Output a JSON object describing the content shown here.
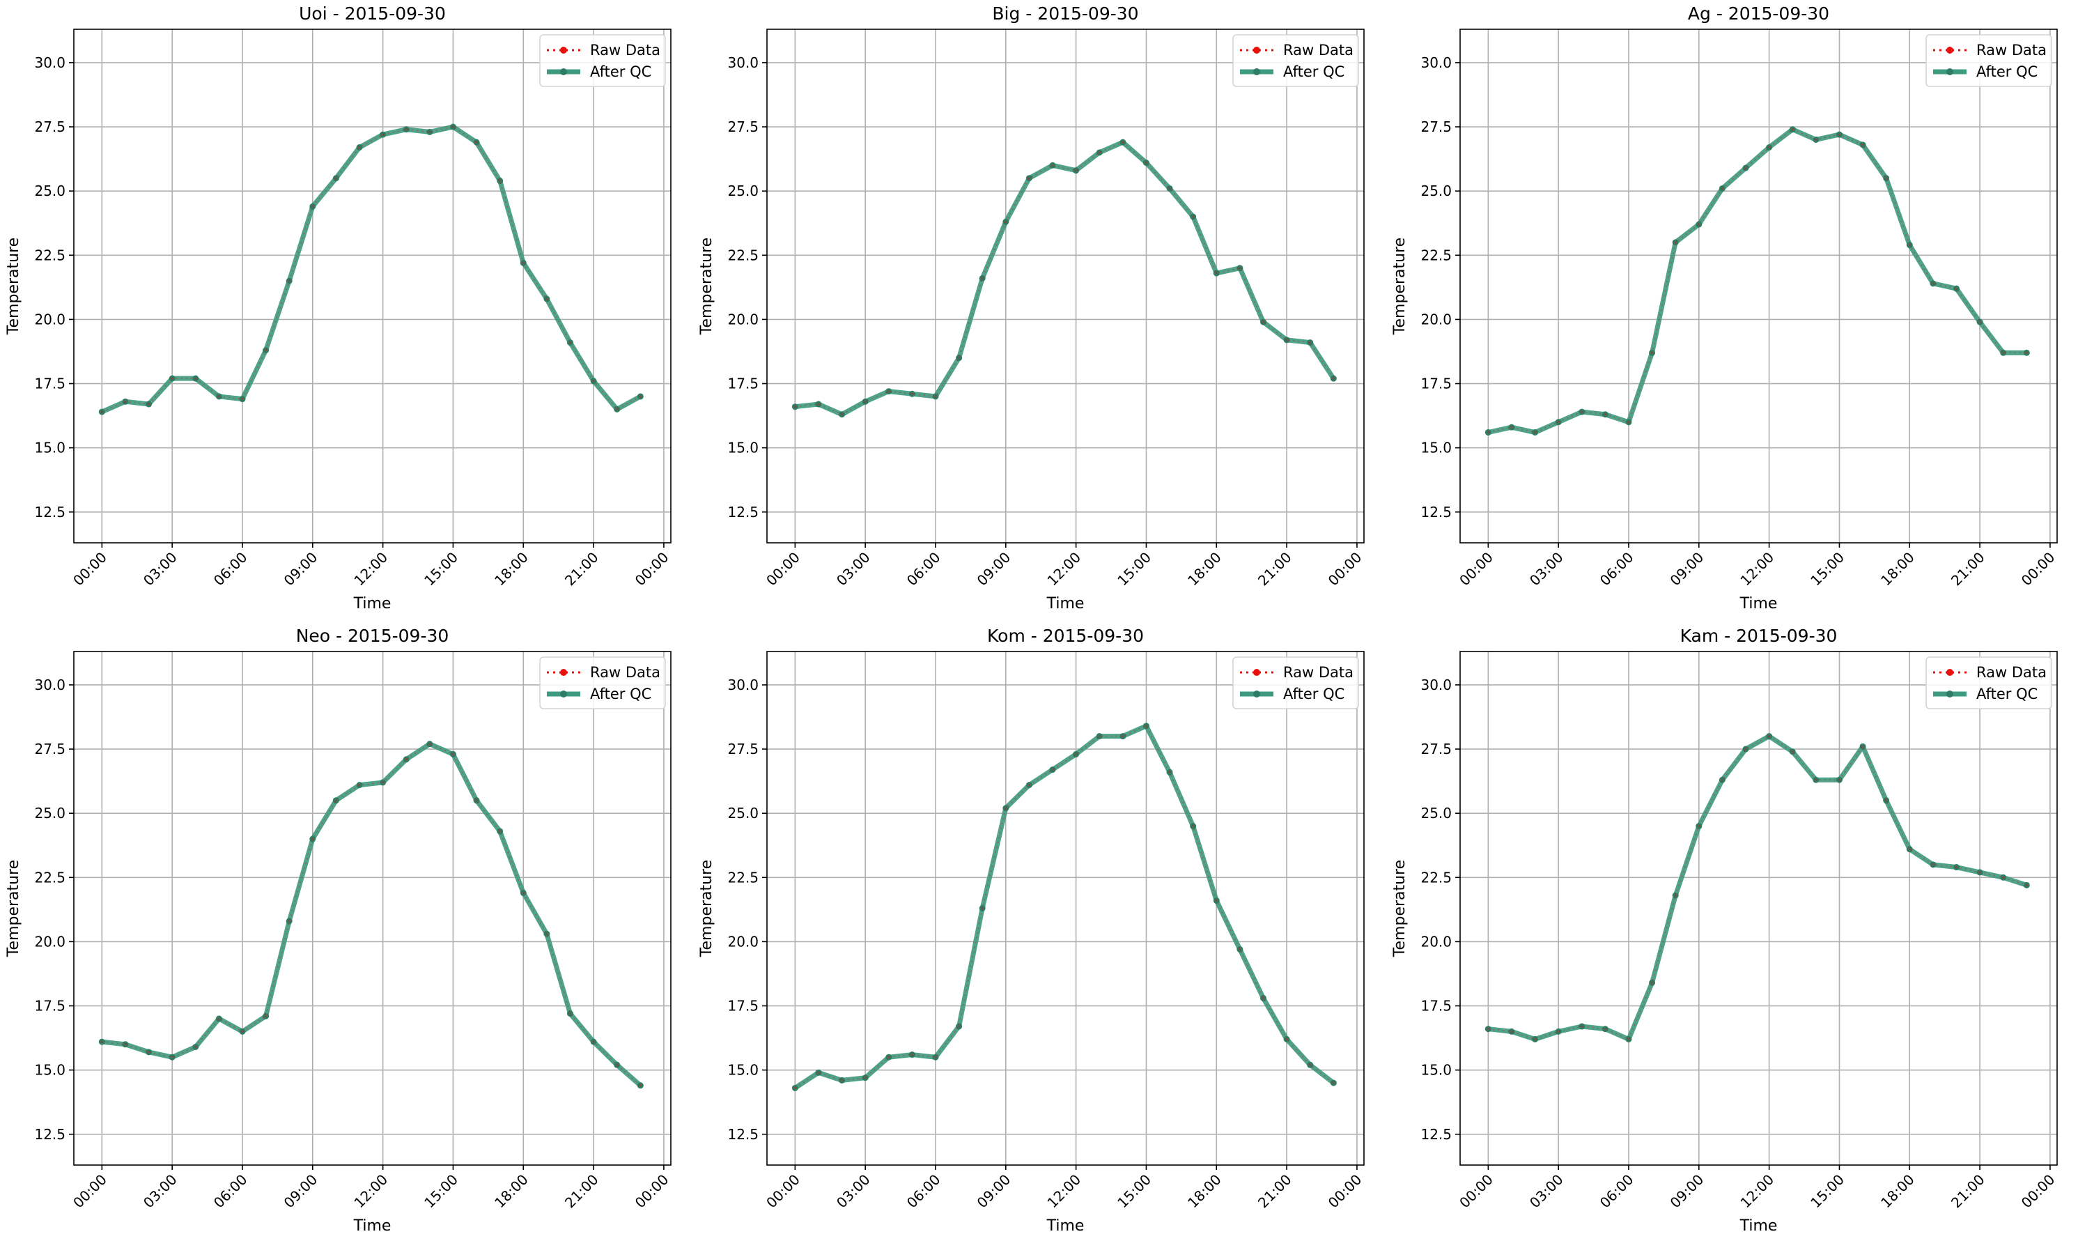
{
  "figure": {
    "colors": {
      "raw": "#e8100c",
      "qc": "#3f9b80",
      "qc_marker": "#2e7d64",
      "grid": "#b0b0b0",
      "frame": "#000000"
    },
    "legend": {
      "position": "upper-right",
      "entries": [
        "Raw Data",
        "After QC"
      ]
    }
  },
  "chart_data": [
    {
      "type": "line",
      "title": "Uoi - 2015-09-30",
      "xlabel": "Time",
      "ylabel": "Temperature",
      "xlim": [
        -1.2,
        24.3
      ],
      "ylim": [
        11.3,
        31.3
      ],
      "x_ticks": [
        0,
        3,
        6,
        9,
        12,
        15,
        18,
        21,
        24
      ],
      "x_tick_labels": [
        "00:00",
        "03:00",
        "06:00",
        "09:00",
        "12:00",
        "15:00",
        "18:00",
        "21:00",
        "00:00"
      ],
      "y_ticks": [
        12.5,
        15.0,
        17.5,
        20.0,
        22.5,
        25.0,
        27.5,
        30.0
      ],
      "y_tick_labels": [
        "12.5",
        "15.0",
        "17.5",
        "20.0",
        "22.5",
        "25.0",
        "27.5",
        "30.0"
      ],
      "grid": true,
      "legend": "upper-right",
      "x": [
        0,
        1,
        2,
        3,
        4,
        5,
        6,
        7,
        8,
        9,
        10,
        11,
        12,
        13,
        14,
        15,
        16,
        17,
        18,
        19,
        20,
        21,
        22,
        23
      ],
      "series": [
        {
          "name": "Raw Data",
          "values": [
            16.4,
            16.8,
            16.7,
            17.7,
            17.7,
            17.0,
            16.9,
            18.8,
            21.5,
            24.4,
            25.5,
            26.7,
            27.2,
            27.4,
            27.3,
            27.5,
            26.9,
            25.4,
            22.2,
            20.8,
            19.1,
            17.6,
            16.5,
            17.0
          ]
        },
        {
          "name": "After QC",
          "values": [
            16.4,
            16.8,
            16.7,
            17.7,
            17.7,
            17.0,
            16.9,
            18.8,
            21.5,
            24.4,
            25.5,
            26.7,
            27.2,
            27.4,
            27.3,
            27.5,
            26.9,
            25.4,
            22.2,
            20.8,
            19.1,
            17.6,
            16.5,
            17.0
          ]
        }
      ]
    },
    {
      "type": "line",
      "title": "Big - 2015-09-30",
      "xlabel": "Time",
      "ylabel": "Temperature",
      "xlim": [
        -1.2,
        24.3
      ],
      "ylim": [
        11.3,
        31.3
      ],
      "x_ticks": [
        0,
        3,
        6,
        9,
        12,
        15,
        18,
        21,
        24
      ],
      "x_tick_labels": [
        "00:00",
        "03:00",
        "06:00",
        "09:00",
        "12:00",
        "15:00",
        "18:00",
        "21:00",
        "00:00"
      ],
      "y_ticks": [
        12.5,
        15.0,
        17.5,
        20.0,
        22.5,
        25.0,
        27.5,
        30.0
      ],
      "y_tick_labels": [
        "12.5",
        "15.0",
        "17.5",
        "20.0",
        "22.5",
        "25.0",
        "27.5",
        "30.0"
      ],
      "grid": true,
      "legend": "upper-right",
      "x": [
        0,
        1,
        2,
        3,
        4,
        5,
        6,
        7,
        8,
        9,
        10,
        11,
        12,
        13,
        14,
        15,
        16,
        17,
        18,
        19,
        20,
        21,
        22,
        23
      ],
      "series": [
        {
          "name": "Raw Data",
          "values": [
            16.6,
            16.7,
            16.3,
            16.8,
            17.2,
            17.1,
            17.0,
            18.5,
            21.6,
            23.8,
            25.5,
            26.0,
            25.8,
            26.5,
            26.9,
            26.1,
            25.1,
            24.0,
            21.8,
            22.0,
            19.9,
            19.2,
            19.1,
            17.7
          ]
        },
        {
          "name": "After QC",
          "values": [
            16.6,
            16.7,
            16.3,
            16.8,
            17.2,
            17.1,
            17.0,
            18.5,
            21.6,
            23.8,
            25.5,
            26.0,
            25.8,
            26.5,
            26.9,
            26.1,
            25.1,
            24.0,
            21.8,
            22.0,
            19.9,
            19.2,
            19.1,
            17.7
          ]
        }
      ]
    },
    {
      "type": "line",
      "title": "Ag - 2015-09-30",
      "xlabel": "Time",
      "ylabel": "Temperature",
      "xlim": [
        -1.2,
        24.3
      ],
      "ylim": [
        11.3,
        31.3
      ],
      "x_ticks": [
        0,
        3,
        6,
        9,
        12,
        15,
        18,
        21,
        24
      ],
      "x_tick_labels": [
        "00:00",
        "03:00",
        "06:00",
        "09:00",
        "12:00",
        "15:00",
        "18:00",
        "21:00",
        "00:00"
      ],
      "y_ticks": [
        12.5,
        15.0,
        17.5,
        20.0,
        22.5,
        25.0,
        27.5,
        30.0
      ],
      "y_tick_labels": [
        "12.5",
        "15.0",
        "17.5",
        "20.0",
        "22.5",
        "25.0",
        "27.5",
        "30.0"
      ],
      "grid": true,
      "legend": "upper-right",
      "x": [
        0,
        1,
        2,
        3,
        4,
        5,
        6,
        7,
        8,
        9,
        10,
        11,
        12,
        13,
        14,
        15,
        16,
        17,
        18,
        19,
        20,
        21,
        22,
        23
      ],
      "series": [
        {
          "name": "Raw Data",
          "values": [
            15.6,
            15.8,
            15.6,
            16.0,
            16.4,
            16.3,
            16.0,
            18.7,
            23.0,
            23.7,
            25.1,
            25.9,
            26.7,
            27.4,
            27.0,
            27.2,
            26.8,
            25.5,
            22.9,
            21.4,
            21.2,
            19.9,
            18.7,
            18.7
          ]
        },
        {
          "name": "After QC",
          "values": [
            15.6,
            15.8,
            15.6,
            16.0,
            16.4,
            16.3,
            16.0,
            18.7,
            23.0,
            23.7,
            25.1,
            25.9,
            26.7,
            27.4,
            27.0,
            27.2,
            26.8,
            25.5,
            22.9,
            21.4,
            21.2,
            19.9,
            18.7,
            18.7
          ]
        }
      ]
    },
    {
      "type": "line",
      "title": "Neo - 2015-09-30",
      "xlabel": "Time",
      "ylabel": "Temperature",
      "xlim": [
        -1.2,
        24.3
      ],
      "ylim": [
        11.3,
        31.3
      ],
      "x_ticks": [
        0,
        3,
        6,
        9,
        12,
        15,
        18,
        21,
        24
      ],
      "x_tick_labels": [
        "00:00",
        "03:00",
        "06:00",
        "09:00",
        "12:00",
        "15:00",
        "18:00",
        "21:00",
        "00:00"
      ],
      "y_ticks": [
        12.5,
        15.0,
        17.5,
        20.0,
        22.5,
        25.0,
        27.5,
        30.0
      ],
      "y_tick_labels": [
        "12.5",
        "15.0",
        "17.5",
        "20.0",
        "22.5",
        "25.0",
        "27.5",
        "30.0"
      ],
      "grid": true,
      "legend": "upper-right",
      "x": [
        0,
        1,
        2,
        3,
        4,
        5,
        6,
        7,
        8,
        9,
        10,
        11,
        12,
        13,
        14,
        15,
        16,
        17,
        18,
        19,
        20,
        21,
        22,
        23
      ],
      "series": [
        {
          "name": "Raw Data",
          "values": [
            16.1,
            16.0,
            15.7,
            15.5,
            15.9,
            17.0,
            16.5,
            17.1,
            20.8,
            24.0,
            25.5,
            26.1,
            26.2,
            27.1,
            27.7,
            27.3,
            25.5,
            24.3,
            21.9,
            20.3,
            17.2,
            16.1,
            15.2,
            14.4
          ]
        },
        {
          "name": "After QC",
          "values": [
            16.1,
            16.0,
            15.7,
            15.5,
            15.9,
            17.0,
            16.5,
            17.1,
            20.8,
            24.0,
            25.5,
            26.1,
            26.2,
            27.1,
            27.7,
            27.3,
            25.5,
            24.3,
            21.9,
            20.3,
            17.2,
            16.1,
            15.2,
            14.4
          ]
        }
      ]
    },
    {
      "type": "line",
      "title": "Kom - 2015-09-30",
      "xlabel": "Time",
      "ylabel": "Temperature",
      "xlim": [
        -1.2,
        24.3
      ],
      "ylim": [
        11.3,
        31.3
      ],
      "x_ticks": [
        0,
        3,
        6,
        9,
        12,
        15,
        18,
        21,
        24
      ],
      "x_tick_labels": [
        "00:00",
        "03:00",
        "06:00",
        "09:00",
        "12:00",
        "15:00",
        "18:00",
        "21:00",
        "00:00"
      ],
      "y_ticks": [
        12.5,
        15.0,
        17.5,
        20.0,
        22.5,
        25.0,
        27.5,
        30.0
      ],
      "y_tick_labels": [
        "12.5",
        "15.0",
        "17.5",
        "20.0",
        "22.5",
        "25.0",
        "27.5",
        "30.0"
      ],
      "grid": true,
      "legend": "upper-right",
      "x": [
        0,
        1,
        2,
        3,
        4,
        5,
        6,
        7,
        8,
        9,
        10,
        11,
        12,
        13,
        14,
        15,
        16,
        17,
        18,
        19,
        20,
        21,
        22,
        23
      ],
      "series": [
        {
          "name": "Raw Data",
          "values": [
            14.3,
            14.9,
            14.6,
            14.7,
            15.5,
            15.6,
            15.5,
            16.7,
            21.3,
            25.2,
            26.1,
            26.7,
            27.3,
            28.0,
            28.0,
            28.4,
            26.6,
            24.5,
            21.6,
            19.7,
            17.8,
            16.2,
            15.2,
            14.5
          ]
        },
        {
          "name": "After QC",
          "values": [
            14.3,
            14.9,
            14.6,
            14.7,
            15.5,
            15.6,
            15.5,
            16.7,
            21.3,
            25.2,
            26.1,
            26.7,
            27.3,
            28.0,
            28.0,
            28.4,
            26.6,
            24.5,
            21.6,
            19.7,
            17.8,
            16.2,
            15.2,
            14.5
          ]
        }
      ]
    },
    {
      "type": "line",
      "title": "Kam - 2015-09-30",
      "xlabel": "Time",
      "ylabel": "Temperature",
      "xlim": [
        -1.2,
        24.3
      ],
      "ylim": [
        11.3,
        31.3
      ],
      "x_ticks": [
        0,
        3,
        6,
        9,
        12,
        15,
        18,
        21,
        24
      ],
      "x_tick_labels": [
        "00:00",
        "03:00",
        "06:00",
        "09:00",
        "12:00",
        "15:00",
        "18:00",
        "21:00",
        "00:00"
      ],
      "y_ticks": [
        12.5,
        15.0,
        17.5,
        20.0,
        22.5,
        25.0,
        27.5,
        30.0
      ],
      "y_tick_labels": [
        "12.5",
        "15.0",
        "17.5",
        "20.0",
        "22.5",
        "25.0",
        "27.5",
        "30.0"
      ],
      "grid": true,
      "legend": "upper-right",
      "x": [
        0,
        1,
        2,
        3,
        4,
        5,
        6,
        7,
        8,
        9,
        10,
        11,
        12,
        13,
        14,
        15,
        16,
        17,
        18,
        19,
        20,
        21,
        22,
        23
      ],
      "series": [
        {
          "name": "Raw Data",
          "values": [
            16.6,
            16.5,
            16.2,
            16.5,
            16.7,
            16.6,
            16.2,
            18.4,
            21.8,
            24.5,
            26.3,
            27.5,
            28.0,
            27.4,
            26.3,
            26.3,
            27.6,
            25.5,
            23.6,
            23.0,
            22.9,
            22.7,
            22.5,
            22.2
          ]
        },
        {
          "name": "After QC",
          "values": [
            16.6,
            16.5,
            16.2,
            16.5,
            16.7,
            16.6,
            16.2,
            18.4,
            21.8,
            24.5,
            26.3,
            27.5,
            28.0,
            27.4,
            26.3,
            26.3,
            27.6,
            25.5,
            23.6,
            23.0,
            22.9,
            22.7,
            22.5,
            22.2
          ]
        }
      ]
    }
  ]
}
